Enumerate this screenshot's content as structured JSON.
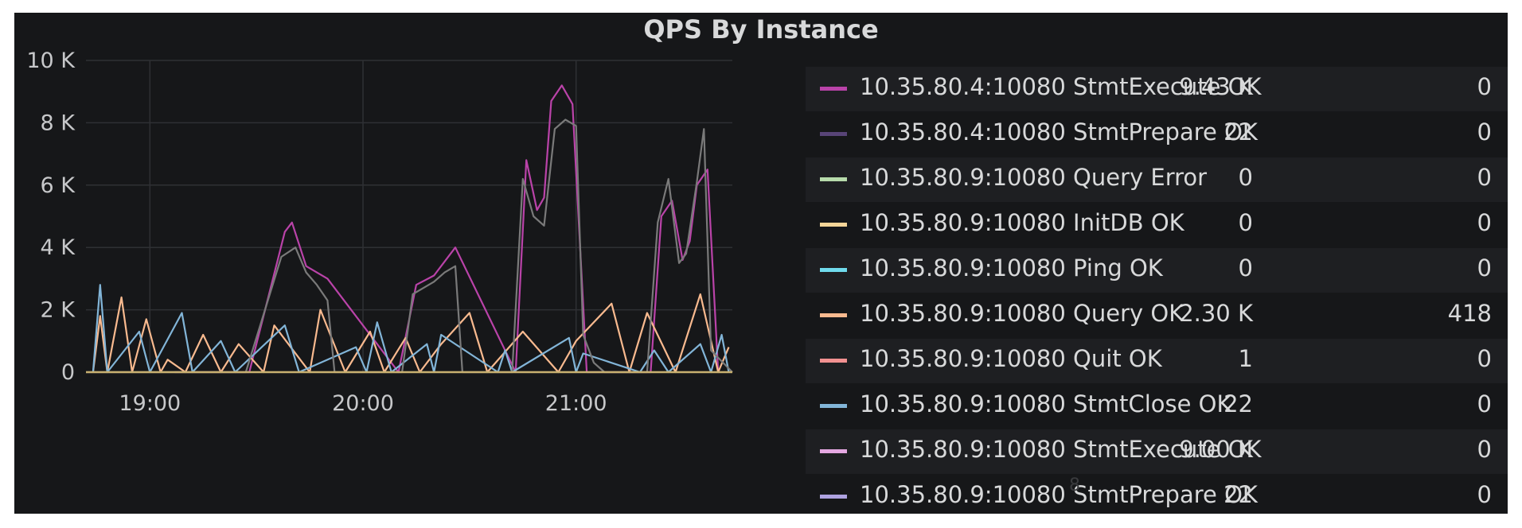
{
  "panel": {
    "title": "QPS By Instance"
  },
  "chart_data": {
    "type": "line",
    "title": "QPS By Instance",
    "xlabel": "",
    "ylabel": "",
    "x_ticks": [
      "19:00",
      "20:00",
      "21:00"
    ],
    "y_ticks": [
      "0",
      "2 K",
      "4 K",
      "6 K",
      "8 K",
      "10 K"
    ],
    "y_tick_values": [
      0,
      2000,
      4000,
      6000,
      8000,
      10000
    ],
    "ylim": [
      0,
      10000
    ],
    "xlim": [
      "18:42",
      "21:44"
    ],
    "grid": true,
    "legend_position": "right",
    "series": [
      {
        "name": "10.35.80.4:10080 StmtExecute OK",
        "color": "#ba43a9",
        "current": "9.43 K",
        "value2": "0",
        "x": [
          "19:07",
          "19:28",
          "19:38",
          "19:40",
          "19:44",
          "19:50",
          "20:10",
          "20:15",
          "20:20",
          "20:26",
          "20:43",
          "20:46",
          "20:49",
          "20:51",
          "20:53",
          "20:56",
          "20:59",
          "21:03",
          "21:07",
          "21:12",
          "21:21",
          "21:24",
          "21:27",
          "21:30",
          "21:32",
          "21:34",
          "21:37",
          "21:40"
        ],
        "y": [
          0,
          0,
          4500,
          4800,
          3400,
          3000,
          0,
          2800,
          3100,
          4000,
          0,
          6800,
          5200,
          5600,
          8700,
          9200,
          8600,
          0,
          0,
          0,
          0,
          5000,
          5500,
          3600,
          4200,
          6000,
          6500,
          0
        ]
      },
      {
        "name": "10.35.80.4:10080 StmtPrepare OK",
        "color": "#584477",
        "current": "22",
        "value2": "0"
      },
      {
        "name": "10.35.80.9:10080 Query Error",
        "color": "#b7dbab",
        "current": "0",
        "value2": "0"
      },
      {
        "name": "10.35.80.9:10080 InitDB OK",
        "color": "#f4d598",
        "current": "0",
        "value2": "0"
      },
      {
        "name": "10.35.80.9:10080 Ping OK",
        "color": "#70dbed",
        "current": "0",
        "value2": "0"
      },
      {
        "name": "10.35.80.9:10080 Query OK",
        "color": "#f9ba8f",
        "current": "2.30 K",
        "value2": "418",
        "x": [
          "18:44",
          "18:46",
          "18:48",
          "18:52",
          "18:55",
          "18:59",
          "19:03",
          "19:05",
          "19:10",
          "19:15",
          "19:20",
          "19:25",
          "19:32",
          "19:35",
          "19:45",
          "19:48",
          "19:55",
          "20:02",
          "20:06",
          "20:12",
          "20:16",
          "20:22",
          "20:30",
          "20:35",
          "20:45",
          "20:55",
          "21:00",
          "21:10",
          "21:15",
          "21:20",
          "21:28",
          "21:35",
          "21:40",
          "21:43"
        ],
        "y": [
          0,
          1800,
          0,
          2400,
          0,
          1700,
          0,
          400,
          0,
          1200,
          0,
          900,
          0,
          1500,
          0,
          2000,
          0,
          1300,
          0,
          1100,
          0,
          900,
          1900,
          0,
          1300,
          0,
          1000,
          2200,
          0,
          1900,
          0,
          2500,
          0,
          800
        ]
      },
      {
        "name": "10.35.80.9:10080 Quit OK",
        "color": "#f29191",
        "current": "1",
        "value2": "0"
      },
      {
        "name": "10.35.80.9:10080 StmtClose OK",
        "color": "#82b5d8",
        "current": "22",
        "value2": "0",
        "x": [
          "18:44",
          "18:46",
          "18:48",
          "18:57",
          "19:00",
          "19:09",
          "19:12",
          "19:20",
          "19:24",
          "19:38",
          "19:42",
          "19:58",
          "20:01",
          "20:04",
          "20:08",
          "20:18",
          "20:20",
          "20:22",
          "20:38",
          "20:40",
          "20:42",
          "20:58",
          "21:00",
          "21:02",
          "21:18",
          "21:22",
          "21:26",
          "21:35",
          "21:38",
          "21:41",
          "21:43"
        ],
        "y": [
          0,
          2800,
          0,
          1300,
          0,
          1900,
          0,
          1000,
          0,
          1500,
          0,
          800,
          0,
          1600,
          0,
          900,
          0,
          1200,
          0,
          700,
          0,
          1100,
          0,
          600,
          0,
          700,
          0,
          900,
          0,
          1200,
          0
        ]
      },
      {
        "name": "10.35.80.9:10080 StmtExecute OK",
        "color": "#e5a8e2",
        "current": "9.00 K",
        "value2": "0"
      },
      {
        "name": "10.35.80.9:10080 StmtPrepare OK",
        "color": "#aea2e0",
        "current": "22",
        "value2": "0"
      },
      {
        "name": "overlay-grey",
        "color": "#7a7a7a",
        "x": [
          "18:42",
          "19:27",
          "19:37",
          "19:41",
          "19:44",
          "19:47",
          "19:50",
          "19:52",
          "20:11",
          "20:14",
          "20:17",
          "20:20",
          "20:23",
          "20:26",
          "20:28",
          "20:42",
          "20:45",
          "20:48",
          "20:51",
          "20:54",
          "20:57",
          "21:00",
          "21:02",
          "21:05",
          "21:08",
          "21:20",
          "21:23",
          "21:26",
          "21:29",
          "21:31",
          "21:34",
          "21:36",
          "21:38",
          "21:44"
        ],
        "y": [
          0,
          0,
          3700,
          4000,
          3200,
          2800,
          2300,
          0,
          0,
          2500,
          2700,
          2900,
          3200,
          3400,
          0,
          0,
          6200,
          5000,
          4700,
          7800,
          8100,
          7900,
          1200,
          300,
          0,
          0,
          4800,
          6200,
          3500,
          3800,
          6100,
          7800,
          700,
          0
        ]
      }
    ]
  },
  "legend": {
    "rows": [
      {
        "name": "10.35.80.4:10080 StmtExecute OK",
        "color": "#ba43a9",
        "current": "9.43 K",
        "value2": "0"
      },
      {
        "name": "10.35.80.4:10080 StmtPrepare OK",
        "color": "#584477",
        "current": "22",
        "value2": "0"
      },
      {
        "name": "10.35.80.9:10080 Query Error",
        "color": "#b7dbab",
        "current": "0",
        "value2": "0"
      },
      {
        "name": "10.35.80.9:10080 InitDB OK",
        "color": "#f4d598",
        "current": "0",
        "value2": "0"
      },
      {
        "name": "10.35.80.9:10080 Ping OK",
        "color": "#70dbed",
        "current": "0",
        "value2": "0"
      },
      {
        "name": "10.35.80.9:10080 Query OK",
        "color": "#f9ba8f",
        "current": "2.30 K",
        "value2": "418"
      },
      {
        "name": "10.35.80.9:10080 Quit OK",
        "color": "#f29191",
        "current": "1",
        "value2": "0"
      },
      {
        "name": "10.35.80.9:10080 StmtClose OK",
        "color": "#82b5d8",
        "current": "22",
        "value2": "0"
      },
      {
        "name": "10.35.80.9:10080 StmtExecute OK",
        "color": "#e5a8e2",
        "current": "9.00 K",
        "value2": "0"
      },
      {
        "name": "10.35.80.9:10080 StmtPrepare OK",
        "color": "#aea2e0",
        "current": "22",
        "value2": "0"
      }
    ]
  },
  "watermark": {
    "text": "8"
  }
}
